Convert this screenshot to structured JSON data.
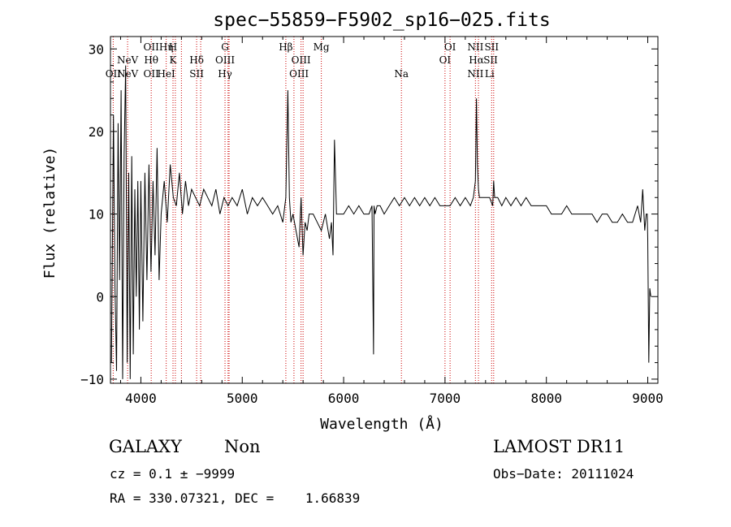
{
  "chart_data": {
    "type": "line",
    "title": "spec−55859−F5902_sp16−025.fits",
    "xlabel": "Wavelength (Å)",
    "ylabel": "Flux (relative)",
    "xlim": [
      3700,
      9100
    ],
    "ylim": [
      -10.5,
      31.5
    ],
    "x_ticks": [
      4000,
      5000,
      6000,
      7000,
      8000,
      9000
    ],
    "y_ticks": [
      -10,
      0,
      10,
      20,
      30
    ],
    "x_tick_labels": [
      "4000",
      "5000",
      "6000",
      "7000",
      "8000",
      "9000"
    ],
    "y_tick_labels": [
      "−10",
      "0",
      "10",
      "20",
      "30"
    ],
    "line_color": "#000000",
    "marker_color": "#cc0000",
    "series": [
      {
        "name": "flux",
        "x": [
          3710,
          3730,
          3745,
          3760,
          3775,
          3790,
          3805,
          3820,
          3835,
          3850,
          3865,
          3880,
          3895,
          3910,
          3925,
          3940,
          3955,
          3970,
          3985,
          4000,
          4020,
          4040,
          4060,
          4080,
          4100,
          4120,
          4140,
          4160,
          4180,
          4200,
          4230,
          4260,
          4290,
          4320,
          4350,
          4380,
          4410,
          4440,
          4470,
          4500,
          4540,
          4580,
          4620,
          4660,
          4700,
          4740,
          4780,
          4820,
          4860,
          4900,
          4950,
          5000,
          5050,
          5100,
          5150,
          5200,
          5250,
          5300,
          5350,
          5400,
          5430,
          5450,
          5465,
          5480,
          5500,
          5530,
          5560,
          5580,
          5600,
          5620,
          5640,
          5660,
          5700,
          5740,
          5780,
          5820,
          5860,
          5880,
          5895,
          5910,
          5930,
          5960,
          6000,
          6050,
          6100,
          6150,
          6200,
          6250,
          6280,
          6295,
          6300,
          6310,
          6330,
          6360,
          6400,
          6450,
          6500,
          6550,
          6600,
          6650,
          6700,
          6750,
          6800,
          6850,
          6900,
          6950,
          7000,
          7050,
          7100,
          7150,
          7200,
          7250,
          7280,
          7300,
          7310,
          7320,
          7330,
          7340,
          7360,
          7400,
          7440,
          7470,
          7480,
          7490,
          7520,
          7560,
          7600,
          7650,
          7700,
          7750,
          7800,
          7850,
          7900,
          7950,
          8000,
          8050,
          8100,
          8150,
          8200,
          8250,
          8300,
          8350,
          8400,
          8450,
          8500,
          8550,
          8600,
          8650,
          8700,
          8750,
          8800,
          8850,
          8900,
          8930,
          8950,
          8970,
          8985,
          8995,
          9000,
          9010,
          9020,
          9030
        ],
        "y": [
          -8,
          22,
          1,
          -9,
          21,
          2,
          25,
          -10,
          17,
          28,
          -8,
          15,
          -10,
          17,
          -7,
          13,
          0,
          14,
          -4,
          14,
          -3,
          15,
          2,
          16,
          3,
          14,
          5,
          18,
          2,
          10,
          14,
          9,
          16,
          12,
          11,
          15,
          10,
          14,
          11,
          13,
          12,
          11,
          13,
          12,
          11,
          13,
          10,
          12,
          11,
          12,
          11,
          13,
          10,
          12,
          11,
          12,
          11,
          10,
          11,
          9,
          12,
          25,
          12,
          9,
          10,
          8,
          6,
          12,
          5,
          9,
          8,
          10,
          10,
          9,
          8,
          10,
          7,
          9,
          5,
          19,
          10,
          10,
          10,
          11,
          10,
          11,
          10,
          10,
          11,
          -7,
          11,
          10,
          11,
          11,
          10,
          11,
          12,
          11,
          12,
          11,
          12,
          11,
          12,
          11,
          12,
          11,
          11,
          11,
          12,
          11,
          12,
          11,
          12,
          14,
          24,
          16,
          13,
          12,
          12,
          12,
          12,
          11,
          14,
          12,
          12,
          11,
          12,
          11,
          12,
          11,
          12,
          11,
          11,
          11,
          11,
          10,
          10,
          10,
          11,
          10,
          10,
          10,
          10,
          10,
          9,
          10,
          10,
          9,
          9,
          10,
          9,
          9,
          11,
          9,
          13,
          8,
          10,
          10,
          7,
          -8,
          1,
          0
        ]
      }
    ],
    "line_markers": [
      {
        "wl": 3727,
        "label": "OII",
        "row": 2
      },
      {
        "wl": 3869,
        "label": "NeV",
        "row": 1
      },
      {
        "wl": 3869,
        "label": "NeV",
        "row": 2
      },
      {
        "wl": 4102,
        "label": "OII",
        "row": 0
      },
      {
        "wl": 4102,
        "label": "Hθ",
        "row": 1
      },
      {
        "wl": 4102,
        "label": "OII",
        "row": 2
      },
      {
        "wl": 4250,
        "label": "Hη",
        "row": 0
      },
      {
        "wl": 4250,
        "label": "HeI",
        "row": 2
      },
      {
        "wl": 4317,
        "label": "H",
        "row": 0
      },
      {
        "wl": 4317,
        "label": "K",
        "row": 1
      },
      {
        "wl": 4550,
        "label": "Hδ",
        "row": 1
      },
      {
        "wl": 4550,
        "label": "SII",
        "row": 2
      },
      {
        "wl": 4830,
        "label": "G",
        "row": 0
      },
      {
        "wl": 4830,
        "label": "OIII",
        "row": 1
      },
      {
        "wl": 4830,
        "label": "Hγ",
        "row": 2
      },
      {
        "wl": 5430,
        "label": "Hβ",
        "row": 0
      },
      {
        "wl": 5580,
        "label": "OIII",
        "row": 1
      },
      {
        "wl": 5560,
        "label": "OIII",
        "row": 2
      },
      {
        "wl": 5780,
        "label": "Mg",
        "row": 0
      },
      {
        "wl": 6570,
        "label": "Na",
        "row": 2
      },
      {
        "wl": 7050,
        "label": "OI",
        "row": 0
      },
      {
        "wl": 7000,
        "label": "OI",
        "row": 1
      },
      {
        "wl": 7300,
        "label": "NII",
        "row": 0
      },
      {
        "wl": 7310,
        "label": "Hα",
        "row": 1
      },
      {
        "wl": 7300,
        "label": "NII",
        "row": 2
      },
      {
        "wl": 7460,
        "label": "SII",
        "row": 0
      },
      {
        "wl": 7450,
        "label": "SII",
        "row": 1
      },
      {
        "wl": 7440,
        "label": "Li",
        "row": 2
      }
    ],
    "marker_lines_wl": [
      3727,
      3869,
      4102,
      4250,
      4317,
      4340,
      4400,
      4550,
      4590,
      4830,
      4860,
      4870,
      5430,
      5510,
      5580,
      5600,
      5780,
      6570,
      7000,
      7050,
      7300,
      7330,
      7460,
      7480
    ]
  },
  "footer": {
    "object_type": "GALAXY",
    "subclass": "Non",
    "survey": "LAMOST DR11",
    "cz": "cz = 0.1 ± −9999",
    "obs_date": "Obs−Date: 20111024",
    "coords": "RA = 330.07321, DEC =    1.66839"
  }
}
